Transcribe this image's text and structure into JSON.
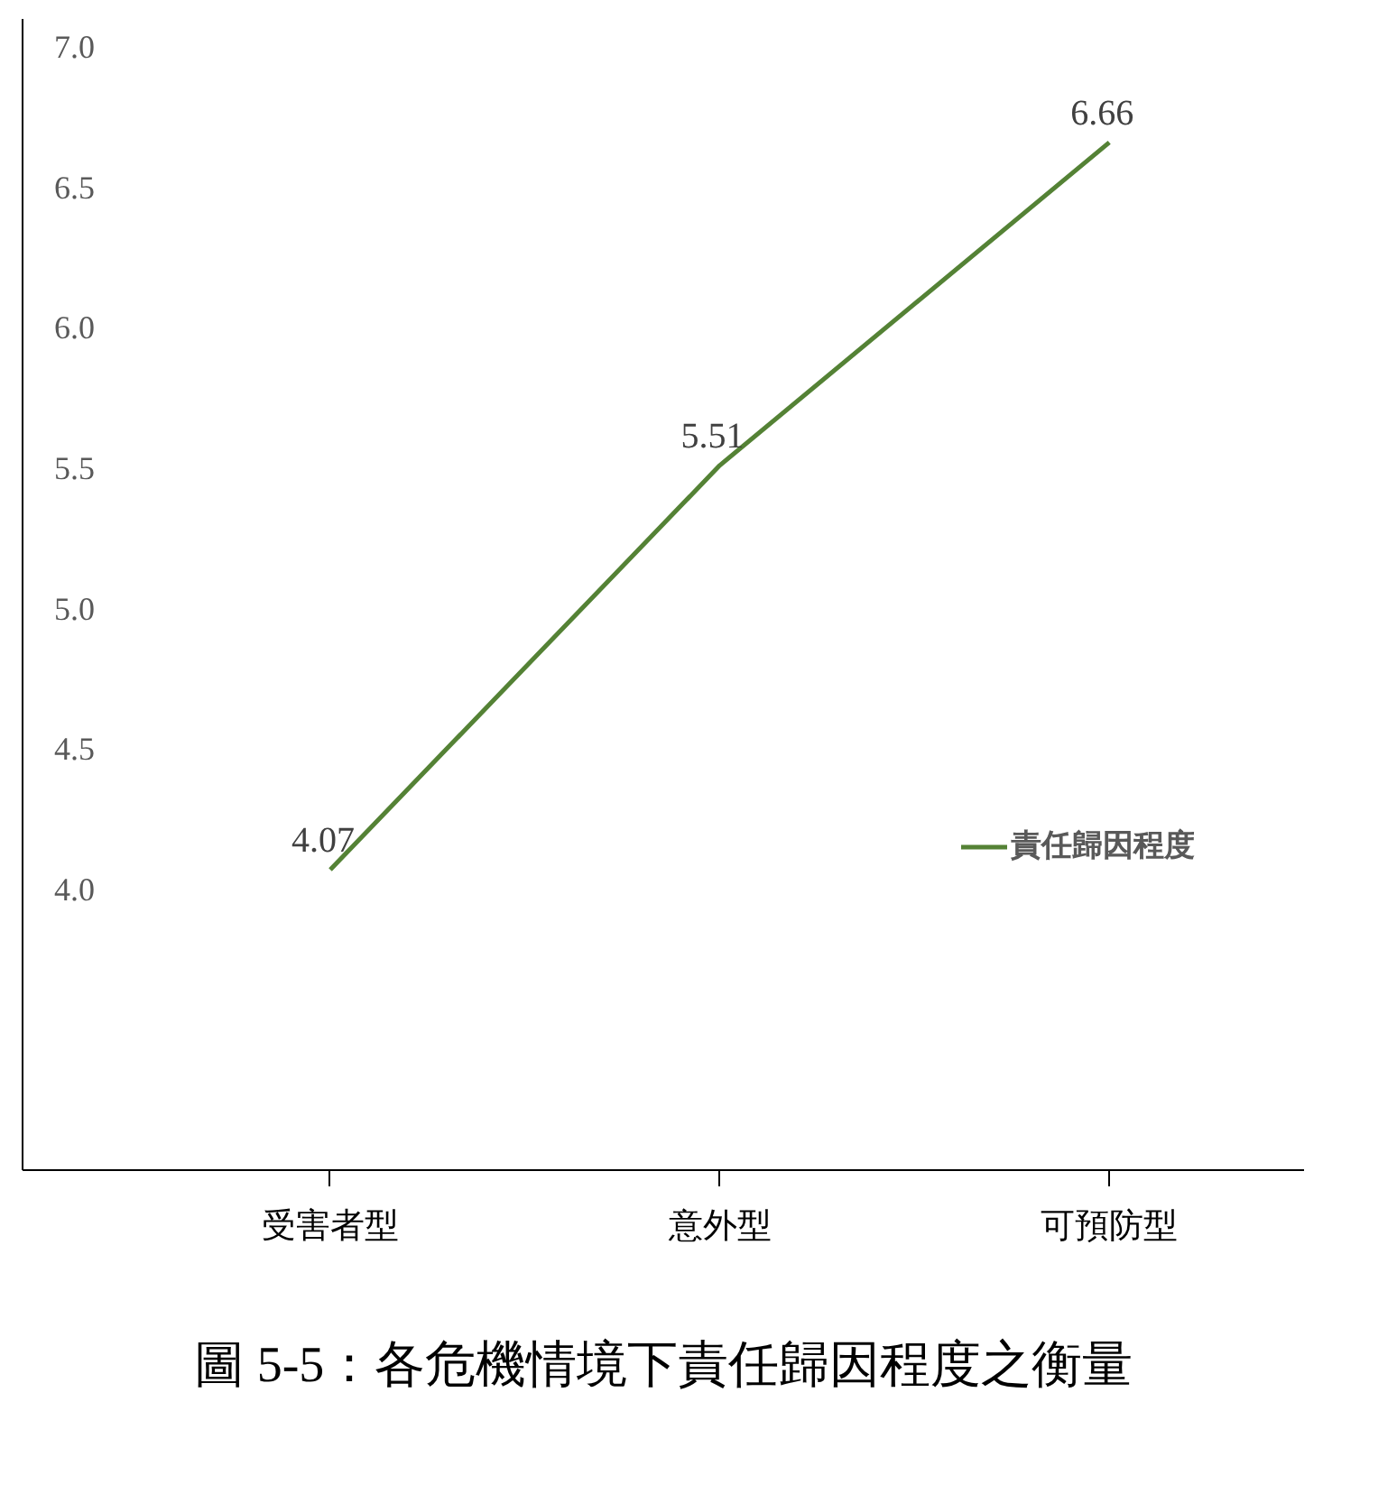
{
  "chart_data": {
    "type": "line",
    "categories": [
      "受害者型",
      "意外型",
      "可預防型"
    ],
    "series": [
      {
        "name": "責任歸因程度",
        "color": "#548235",
        "values": [
          4.07,
          5.51,
          6.66
        ]
      }
    ],
    "ylim": [
      3.0,
      7.1
    ],
    "yticks": [
      {
        "value": 4.0,
        "label": "4.0"
      },
      {
        "value": 4.5,
        "label": "4.5"
      },
      {
        "value": 5.0,
        "label": "5.0"
      },
      {
        "value": 5.5,
        "label": "5.5"
      },
      {
        "value": 6.0,
        "label": "6.0"
      },
      {
        "value": 6.5,
        "label": "6.5"
      },
      {
        "value": 7.0,
        "label": "7.0"
      }
    ],
    "data_labels": true,
    "grid": false,
    "legend": "right",
    "annotations": [
      "圖 5-5：各危機情境下責任歸因程度之衡量"
    ]
  }
}
